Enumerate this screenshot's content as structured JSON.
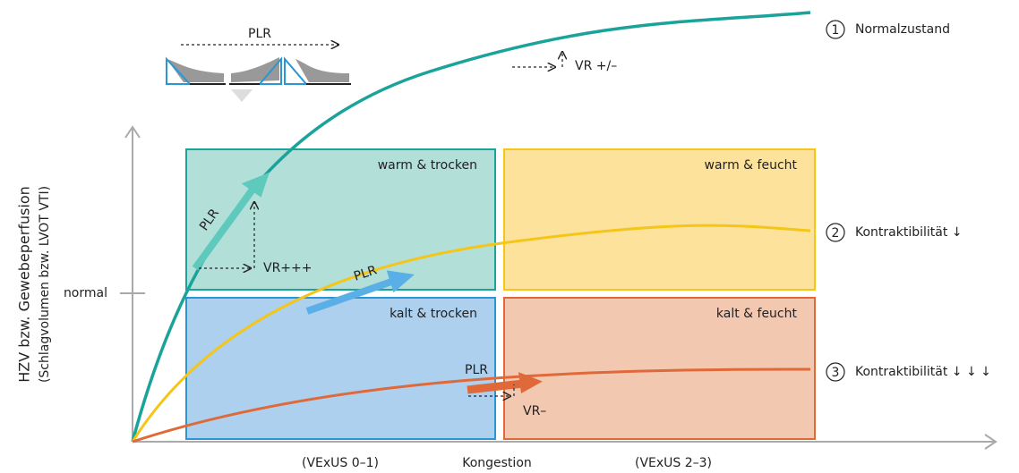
{
  "axes": {
    "y_label": "HZV bzw. Gewebeperfusion",
    "y_sublabel": "(Schlagvolumen bzw. LVOT VTI)",
    "y_tick": "normal",
    "x_labels": [
      "(VExUS 0–1)",
      "Kongestion",
      "(VExUS 2–3)"
    ]
  },
  "quadrants": [
    "warm & trocken",
    "warm & feucht",
    "kalt & trocken",
    "kalt & feucht"
  ],
  "curves": [
    {
      "number": "1",
      "label": "Normalzustand"
    },
    {
      "number": "2",
      "label": "Kontraktibilität ↓"
    },
    {
      "number": "3",
      "label": "Kontraktibilität ↓ ↓ ↓"
    }
  ],
  "annotations": {
    "plr_top": "PLR",
    "vr_1": "VR +/–",
    "plr_1": "PLR",
    "vr_2": "VR+++",
    "plr_2": "PLR",
    "plr_3": "PLR",
    "vr_3": "VR–"
  }
}
